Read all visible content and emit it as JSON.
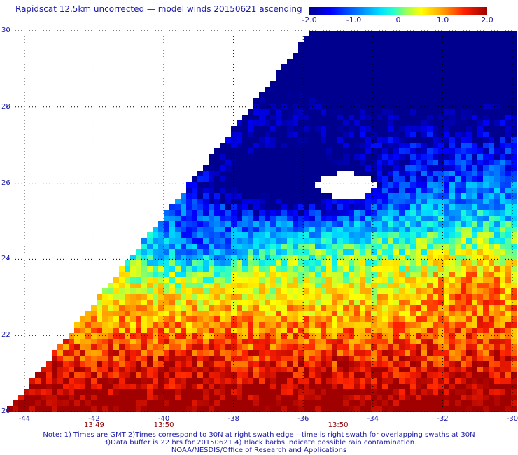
{
  "title": "Rapidscat 12.5km uncorrected — model winds 20150621 ascending",
  "colorbar": {
    "ticks": [
      "-2.0",
      "-1.0",
      "0",
      "1.0",
      "2.0"
    ],
    "range": [
      -2.0,
      2.0
    ]
  },
  "axes": {
    "x_ticks": [
      "-44",
      "-42",
      "-40",
      "-38",
      "-36",
      "-34",
      "-32",
      "-30"
    ],
    "y_ticks": [
      "30",
      "28",
      "26",
      "24",
      "22",
      "20"
    ],
    "lon_range": [
      -44.5,
      -30
    ],
    "lat_range": [
      20,
      30
    ]
  },
  "time_labels": [
    {
      "lon": -42,
      "text": "13:49"
    },
    {
      "lon": -40,
      "text": "13:50"
    },
    {
      "lon": -35,
      "text": "13:50"
    }
  ],
  "notes": [
    "Note: 1) Times are GMT 2)Times correspond to 30N at right swath edge – time is right swath for overlapping swaths at 30N",
    "3)Data buffer is 22 hrs for 20150621 4) Black barbs indicate possible rain contamination",
    "NOAA/NESDIS/Office of Research and Applications"
  ],
  "chart_data": {
    "type": "heatmap",
    "title": "Rapidscat 12.5km uncorrected — model winds 20150621 ascending",
    "xlabel": "",
    "ylabel": "",
    "value_range": [
      -2.0,
      2.0
    ],
    "colors": {
      "negative_strong": "#0000c8",
      "neutral": "#00e0ff",
      "positive_strong": "#c80000"
    }
  }
}
